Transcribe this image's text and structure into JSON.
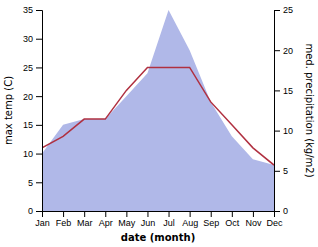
{
  "chart_data": {
    "type": "line",
    "categories": [
      "Jan",
      "Feb",
      "Mar",
      "Apr",
      "May",
      "Jun",
      "Jul",
      "Aug",
      "Sep",
      "Oct",
      "Nov",
      "Dec"
    ],
    "series": [
      {
        "type": "area",
        "color": "#b0b8e8",
        "values": [
          10,
          15,
          16,
          16,
          20,
          24,
          35,
          28,
          19,
          13,
          9,
          8
        ]
      },
      {
        "type": "line",
        "color": "#b03040",
        "values": [
          11,
          13,
          16,
          16,
          21,
          25,
          25,
          25,
          19,
          15,
          11,
          8
        ]
      }
    ],
    "ylim": [
      0,
      35
    ],
    "yticks": [
      0,
      5,
      10,
      15,
      20,
      25,
      30,
      35
    ],
    "y2lim": [
      0,
      25
    ],
    "y2ticks": [
      0,
      5,
      10,
      15,
      20,
      25
    ],
    "x_label": "date (month)",
    "y_label": "max temp (C)",
    "y2_label": "med. precipitation (kg/m2)",
    "grid": false
  }
}
